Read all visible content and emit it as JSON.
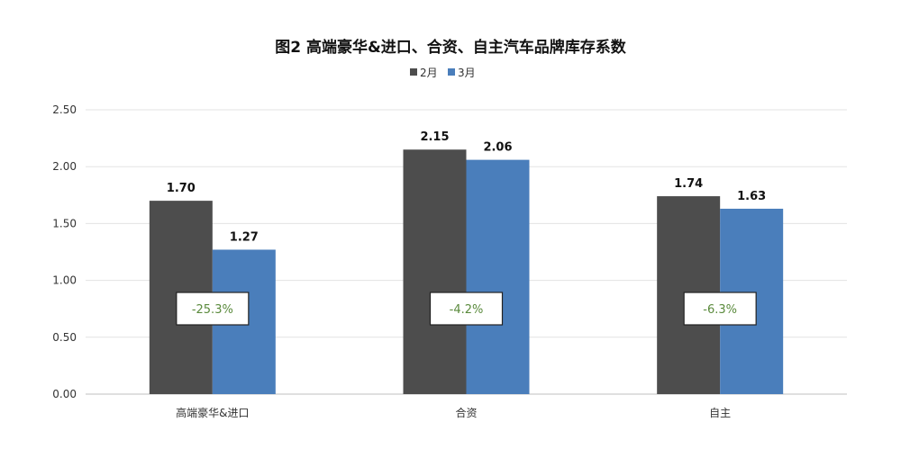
{
  "chart_data": {
    "type": "bar",
    "title": "图2  高端豪华&进口、合资、自主汽车品牌库存系数",
    "categories": [
      "高端豪华&进口",
      "合资",
      "自主"
    ],
    "series": [
      {
        "name": "2月",
        "values": [
          1.7,
          2.15,
          1.74
        ],
        "color": "#4d4d4d"
      },
      {
        "name": "3月",
        "values": [
          1.27,
          2.06,
          1.63
        ],
        "color": "#4a7ebb"
      }
    ],
    "value_labels": [
      [
        "1.70",
        "2.15",
        "1.74"
      ],
      [
        "1.27",
        "2.06",
        "1.63"
      ]
    ],
    "annotations": [
      "-25.3%",
      "-4.2%",
      "-6.3%"
    ],
    "yticks": [
      "0.00",
      "0.50",
      "1.00",
      "1.50",
      "2.00",
      "2.50"
    ],
    "ylim": [
      0,
      2.5
    ],
    "xlabel": "",
    "ylabel": "",
    "grid": true,
    "legend": "top-center"
  }
}
